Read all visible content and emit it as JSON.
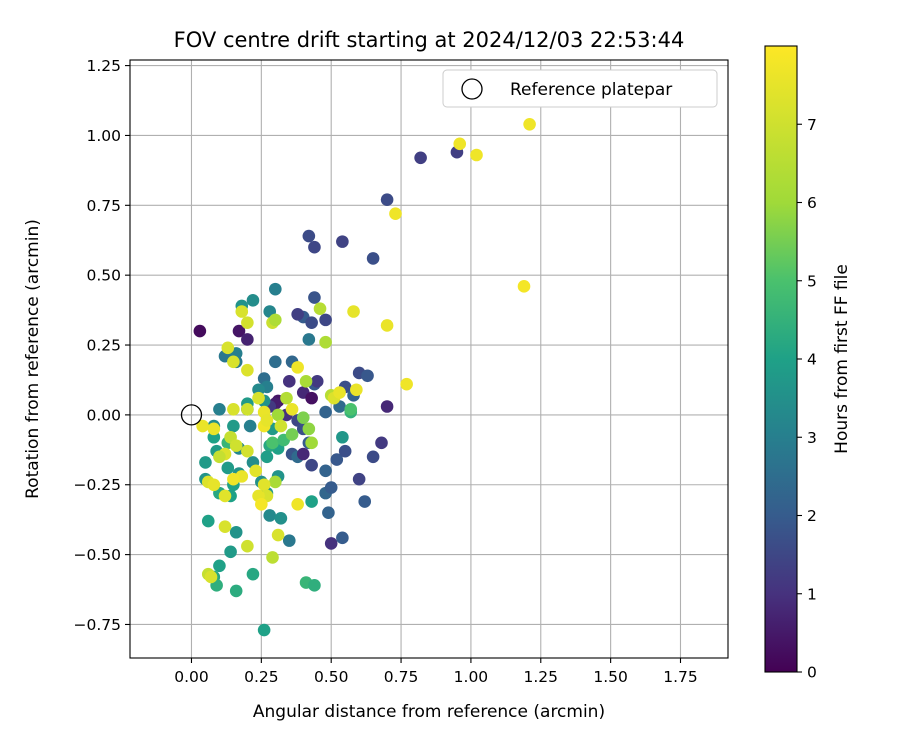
{
  "chart_data": {
    "type": "scatter",
    "title": "FOV centre drift starting at 2024/12/03 22:53:44",
    "xlabel": "Angular distance from reference (arcmin)",
    "ylabel": "Rotation from reference (arcmin)",
    "xlim": [
      -0.22,
      1.92
    ],
    "ylim": [
      -0.87,
      1.27
    ],
    "x_ticks": [
      "0.00",
      "0.25",
      "0.50",
      "0.75",
      "1.00",
      "1.25",
      "1.50",
      "1.75"
    ],
    "x_tick_values": [
      0,
      0.25,
      0.5,
      0.75,
      1.0,
      1.25,
      1.5,
      1.75
    ],
    "y_ticks": [
      "−0.75",
      "−0.50",
      "−0.25",
      "0.00",
      "0.25",
      "0.50",
      "0.75",
      "1.00",
      "1.25"
    ],
    "y_tick_values": [
      -0.75,
      -0.5,
      -0.25,
      0,
      0.25,
      0.5,
      0.75,
      1.0,
      1.25
    ],
    "grid": true,
    "legend": {
      "placement": "top-right",
      "entries": [
        {
          "label": "Reference platepar",
          "marker": "open-circle"
        }
      ]
    },
    "reference_point": {
      "x": 0.0,
      "y": 0.0
    },
    "colorbar": {
      "label": "Hours from first FF file",
      "colormap": "viridis",
      "range": [
        0,
        8
      ],
      "ticks": [
        "0",
        "1",
        "2",
        "3",
        "4",
        "5",
        "6",
        "7"
      ],
      "tick_values": [
        0,
        1,
        2,
        3,
        4,
        5,
        6,
        7
      ]
    },
    "points": [
      [
        0.95,
        0.94,
        1.3
      ],
      [
        0.82,
        0.92,
        1.3
      ],
      [
        0.7,
        0.77,
        1.6
      ],
      [
        0.42,
        0.64,
        1.6
      ],
      [
        0.44,
        0.6,
        1.5
      ],
      [
        0.54,
        0.62,
        1.4
      ],
      [
        0.65,
        0.56,
        1.7
      ],
      [
        0.96,
        0.97,
        7.7
      ],
      [
        1.02,
        0.93,
        7.7
      ],
      [
        1.21,
        1.04,
        7.7
      ],
      [
        0.73,
        0.72,
        7.7
      ],
      [
        1.19,
        0.46,
        7.8
      ],
      [
        0.03,
        0.3,
        0.2
      ],
      [
        0.17,
        0.3,
        0.4
      ],
      [
        0.2,
        0.27,
        0.7
      ],
      [
        0.7,
        0.03,
        0.8
      ],
      [
        0.68,
        -0.1,
        1.2
      ],
      [
        0.6,
        -0.23,
        1.4
      ],
      [
        0.65,
        -0.15,
        1.6
      ],
      [
        0.62,
        -0.31,
        2.0
      ],
      [
        0.5,
        -0.46,
        1.0
      ],
      [
        0.54,
        -0.44,
        2.0
      ],
      [
        0.49,
        -0.35,
        2.2
      ],
      [
        0.48,
        -0.28,
        2.3
      ],
      [
        0.5,
        -0.26,
        2.0
      ],
      [
        0.48,
        -0.2,
        2.2
      ],
      [
        0.52,
        -0.16,
        1.9
      ],
      [
        0.55,
        -0.13,
        1.7
      ],
      [
        0.43,
        -0.18,
        1.5
      ],
      [
        0.44,
        0.42,
        1.8
      ],
      [
        0.4,
        0.35,
        2.0
      ],
      [
        0.43,
        0.33,
        1.6
      ],
      [
        0.48,
        0.34,
        1.5
      ],
      [
        0.38,
        0.36,
        1.3
      ],
      [
        0.3,
        0.45,
        3.0
      ],
      [
        0.28,
        0.37,
        3.2
      ],
      [
        0.22,
        0.41,
        3.4
      ],
      [
        0.18,
        0.39,
        3.6
      ],
      [
        0.42,
        0.27,
        2.8
      ],
      [
        0.3,
        0.19,
        2.5
      ],
      [
        0.36,
        0.19,
        2.3
      ],
      [
        0.44,
        0.11,
        1.9
      ],
      [
        0.45,
        0.12,
        1.2
      ],
      [
        0.4,
        0.08,
        0.8
      ],
      [
        0.43,
        0.06,
        0.3
      ],
      [
        0.35,
        0.12,
        1.0
      ],
      [
        0.31,
        0.05,
        0.4
      ],
      [
        0.3,
        0.04,
        0.6
      ],
      [
        0.28,
        0.03,
        1.2
      ],
      [
        0.34,
        0.0,
        1.0
      ],
      [
        0.38,
        -0.02,
        1.5
      ],
      [
        0.4,
        -0.05,
        1.7
      ],
      [
        0.42,
        -0.1,
        2.0
      ],
      [
        0.36,
        -0.14,
        1.8
      ],
      [
        0.38,
        -0.15,
        2.4
      ],
      [
        0.4,
        -0.14,
        0.8
      ],
      [
        0.6,
        0.15,
        1.6
      ],
      [
        0.63,
        0.14,
        1.9
      ],
      [
        0.55,
        0.1,
        1.7
      ],
      [
        0.58,
        0.07,
        2.2
      ],
      [
        0.48,
        0.01,
        2.2
      ],
      [
        0.53,
        0.03,
        2.4
      ],
      [
        0.54,
        -0.08,
        3.7
      ],
      [
        0.57,
        0.01,
        4.5
      ],
      [
        0.26,
        0.13,
        2.5
      ],
      [
        0.27,
        0.1,
        3.0
      ],
      [
        0.24,
        0.09,
        3.3
      ],
      [
        0.26,
        0.05,
        3.6
      ],
      [
        0.29,
        -0.05,
        3.8
      ],
      [
        0.31,
        -0.12,
        4.0
      ],
      [
        0.28,
        -0.11,
        4.2
      ],
      [
        0.27,
        -0.15,
        3.9
      ],
      [
        0.25,
        -0.24,
        3.5
      ],
      [
        0.27,
        -0.28,
        3.7
      ],
      [
        0.28,
        -0.36,
        3.3
      ],
      [
        0.32,
        -0.37,
        3.5
      ],
      [
        0.35,
        -0.45,
        2.8
      ],
      [
        0.43,
        -0.31,
        4.0
      ],
      [
        0.31,
        -0.22,
        3.6
      ],
      [
        0.2,
        0.04,
        3.8
      ],
      [
        0.2,
        0.02,
        2.8
      ],
      [
        0.21,
        -0.04,
        3.0
      ],
      [
        0.17,
        -0.12,
        3.2
      ],
      [
        0.22,
        -0.17,
        3.4
      ],
      [
        0.17,
        -0.21,
        3.6
      ],
      [
        0.13,
        -0.19,
        3.8
      ],
      [
        0.15,
        -0.25,
        4.0
      ],
      [
        0.1,
        -0.28,
        4.2
      ],
      [
        0.14,
        -0.29,
        4.0
      ],
      [
        0.05,
        -0.17,
        3.8
      ],
      [
        0.05,
        -0.23,
        3.6
      ],
      [
        0.08,
        -0.04,
        3.4
      ],
      [
        0.12,
        0.21,
        2.8
      ],
      [
        0.16,
        0.19,
        2.8
      ],
      [
        0.16,
        0.22,
        3.0
      ],
      [
        0.13,
        -0.1,
        4.6
      ],
      [
        0.1,
        0.02,
        3.0
      ],
      [
        0.15,
        -0.04,
        3.8
      ],
      [
        0.08,
        -0.08,
        4.0
      ],
      [
        0.09,
        -0.13,
        3.8
      ],
      [
        0.16,
        -0.42,
        3.6
      ],
      [
        0.14,
        -0.49,
        3.8
      ],
      [
        0.1,
        -0.54,
        4.0
      ],
      [
        0.08,
        -0.58,
        4.2
      ],
      [
        0.09,
        -0.61,
        4.4
      ],
      [
        0.16,
        -0.63,
        4.3
      ],
      [
        0.22,
        -0.57,
        4.2
      ],
      [
        0.06,
        -0.38,
        4.0
      ],
      [
        0.26,
        -0.77,
        4.0
      ],
      [
        0.41,
        -0.6,
        4.6
      ],
      [
        0.44,
        -0.61,
        4.4
      ],
      [
        0.29,
        -0.1,
        5.0
      ],
      [
        0.33,
        -0.09,
        4.8
      ],
      [
        0.36,
        -0.07,
        5.5
      ],
      [
        0.31,
        0.0,
        6.0
      ],
      [
        0.34,
        0.06,
        6.4
      ],
      [
        0.41,
        0.12,
        6.2
      ],
      [
        0.46,
        0.38,
        6.5
      ],
      [
        0.48,
        0.26,
        6.3
      ],
      [
        0.5,
        0.07,
        6.5
      ],
      [
        0.57,
        0.02,
        5.0
      ],
      [
        0.42,
        -0.05,
        5.8
      ],
      [
        0.43,
        -0.1,
        6.0
      ],
      [
        0.4,
        -0.01,
        5.6
      ],
      [
        0.3,
        -0.24,
        6.2
      ],
      [
        0.29,
        -0.51,
        6.6
      ],
      [
        0.29,
        0.33,
        6.9
      ],
      [
        0.3,
        0.34,
        6.3
      ],
      [
        0.31,
        -0.43,
        7.2
      ],
      [
        0.26,
        -0.25,
        7.4
      ],
      [
        0.27,
        -0.29,
        7.2
      ],
      [
        0.24,
        -0.29,
        7.5
      ],
      [
        0.25,
        -0.32,
        7.8
      ],
      [
        0.23,
        -0.2,
        7.4
      ],
      [
        0.26,
        0.01,
        7.6
      ],
      [
        0.24,
        0.06,
        7.2
      ],
      [
        0.26,
        -0.04,
        7.7
      ],
      [
        0.27,
        -0.02,
        7.5
      ],
      [
        0.32,
        -0.04,
        7.0
      ],
      [
        0.36,
        0.02,
        7.6
      ],
      [
        0.38,
        0.17,
        7.7
      ],
      [
        0.38,
        -0.32,
        7.7
      ],
      [
        0.51,
        0.06,
        7.3
      ],
      [
        0.53,
        0.08,
        7.6
      ],
      [
        0.59,
        0.09,
        7.6
      ],
      [
        0.7,
        0.32,
        7.6
      ],
      [
        0.58,
        0.37,
        7.5
      ],
      [
        0.77,
        0.11,
        7.7
      ],
      [
        0.2,
        0.16,
        7.3
      ],
      [
        0.15,
        0.19,
        7.2
      ],
      [
        0.13,
        0.24,
        7.2
      ],
      [
        0.18,
        0.37,
        7.2
      ],
      [
        0.2,
        0.33,
        7.1
      ],
      [
        0.2,
        0.02,
        7.0
      ],
      [
        0.15,
        0.02,
        7.2
      ],
      [
        0.14,
        -0.08,
        6.8
      ],
      [
        0.16,
        -0.11,
        7.0
      ],
      [
        0.2,
        -0.13,
        7.1
      ],
      [
        0.18,
        -0.22,
        7.6
      ],
      [
        0.12,
        -0.14,
        7.3
      ],
      [
        0.1,
        -0.15,
        6.8
      ],
      [
        0.08,
        -0.05,
        7.6
      ],
      [
        0.04,
        -0.04,
        7.6
      ],
      [
        0.06,
        -0.24,
        7.3
      ],
      [
        0.08,
        -0.25,
        7.5
      ],
      [
        0.12,
        -0.29,
        7.4
      ],
      [
        0.15,
        -0.23,
        7.7
      ],
      [
        0.12,
        -0.4,
        7.2
      ],
      [
        0.2,
        -0.47,
        7.0
      ],
      [
        0.06,
        -0.57,
        6.8
      ],
      [
        0.07,
        -0.58,
        7.2
      ]
    ]
  }
}
